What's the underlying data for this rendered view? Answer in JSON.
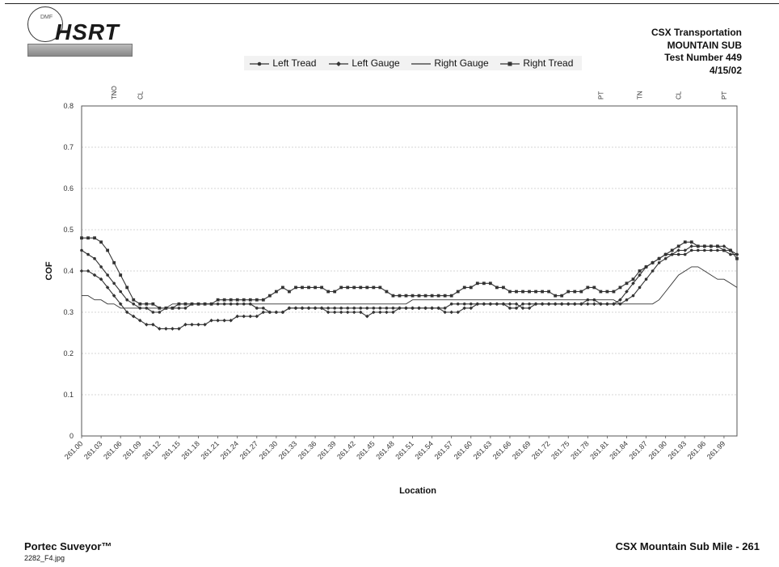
{
  "header": {
    "logo_text": "HSRT",
    "logo_small": "DMF",
    "company_lines": [
      "CSX Transportation",
      "MOUNTAIN SUB",
      "Test Number 449",
      "4/15/02"
    ]
  },
  "legend": [
    "Left Tread",
    "Left Gauge",
    "Right Gauge",
    "Right Tread"
  ],
  "footer": {
    "left": "Portec Suveyor™",
    "filename": "2282_F4.jpg",
    "right": "CSX Mountain Sub Mile - 261"
  },
  "chart_data": {
    "type": "line",
    "title": "",
    "xlabel": "Location",
    "ylabel": "COF",
    "ylim": [
      0,
      0.8
    ],
    "yticks": [
      0,
      0.1,
      0.2,
      0.3,
      0.4,
      0.5,
      0.6,
      0.7,
      0.8
    ],
    "grid": "horizontal",
    "legend_position": "top",
    "x": [
      "261.00",
      "261.01",
      "261.02",
      "261.03",
      "261.04",
      "261.05",
      "261.06",
      "261.07",
      "261.08",
      "261.09",
      "261.10",
      "261.11",
      "261.12",
      "261.13",
      "261.14",
      "261.15",
      "261.16",
      "261.17",
      "261.18",
      "261.19",
      "261.20",
      "261.21",
      "261.22",
      "261.23",
      "261.24",
      "261.25",
      "261.26",
      "261.27",
      "261.28",
      "261.29",
      "261.30",
      "261.31",
      "261.32",
      "261.33",
      "261.34",
      "261.35",
      "261.36",
      "261.37",
      "261.38",
      "261.39",
      "261.40",
      "261.41",
      "261.42",
      "261.43",
      "261.44",
      "261.45",
      "261.46",
      "261.47",
      "261.48",
      "261.49",
      "261.50",
      "261.51",
      "261.52",
      "261.53",
      "261.54",
      "261.55",
      "261.56",
      "261.57",
      "261.58",
      "261.59",
      "261.60",
      "261.61",
      "261.62",
      "261.63",
      "261.64",
      "261.65",
      "261.66",
      "261.67",
      "261.68",
      "261.69",
      "261.70",
      "261.71",
      "261.72",
      "261.73",
      "261.74",
      "261.75",
      "261.76",
      "261.77",
      "261.78",
      "261.79",
      "261.80",
      "261.81",
      "261.82",
      "261.83",
      "261.84",
      "261.85",
      "261.86",
      "261.87",
      "261.88",
      "261.89",
      "261.90",
      "261.91",
      "261.92",
      "261.93",
      "261.94",
      "261.95",
      "261.96",
      "261.97",
      "261.98",
      "261.99",
      "262.00",
      "262.01"
    ],
    "x_tick_labels": [
      "261.00",
      "261.03",
      "261.06",
      "261.09",
      "261.12",
      "261.15",
      "261.18",
      "261.21",
      "261.24",
      "261.27",
      "261.30",
      "261.33",
      "261.36",
      "261.39",
      "261.42",
      "261.45",
      "261.48",
      "261.51",
      "261.54",
      "261.57",
      "261.60",
      "261.63",
      "261.66",
      "261.69",
      "261.72",
      "261.75",
      "261.78",
      "261.81",
      "261.84",
      "261.87",
      "261.90",
      "261.93",
      "261.96",
      "261.99"
    ],
    "track_markers": [
      {
        "label": "TNO",
        "x": "261.05"
      },
      {
        "label": "CL",
        "x": "261.09"
      },
      {
        "label": "PT",
        "x": "261.80"
      },
      {
        "label": "TN",
        "x": "261.86"
      },
      {
        "label": "CL",
        "x": "261.92"
      },
      {
        "label": "PT",
        "x": "261.99"
      }
    ],
    "series": [
      {
        "name": "Left Tread",
        "marker": "circle",
        "values": [
          0.45,
          0.44,
          0.43,
          0.41,
          0.39,
          0.37,
          0.35,
          0.33,
          0.32,
          0.31,
          0.31,
          0.3,
          0.3,
          0.31,
          0.31,
          0.31,
          0.31,
          0.32,
          0.32,
          0.32,
          0.32,
          0.32,
          0.32,
          0.32,
          0.32,
          0.32,
          0.32,
          0.31,
          0.31,
          0.3,
          0.3,
          0.3,
          0.31,
          0.31,
          0.31,
          0.31,
          0.31,
          0.31,
          0.31,
          0.31,
          0.31,
          0.31,
          0.31,
          0.31,
          0.31,
          0.31,
          0.31,
          0.31,
          0.31,
          0.31,
          0.31,
          0.31,
          0.31,
          0.31,
          0.31,
          0.31,
          0.31,
          0.32,
          0.32,
          0.32,
          0.32,
          0.32,
          0.32,
          0.32,
          0.32,
          0.32,
          0.31,
          0.31,
          0.32,
          0.32,
          0.32,
          0.32,
          0.32,
          0.32,
          0.32,
          0.32,
          0.32,
          0.32,
          0.33,
          0.33,
          0.32,
          0.32,
          0.32,
          0.32,
          0.33,
          0.34,
          0.36,
          0.38,
          0.4,
          0.42,
          0.43,
          0.44,
          0.44,
          0.44,
          0.45,
          0.45,
          0.45,
          0.45,
          0.45,
          0.45,
          0.44,
          0.44
        ]
      },
      {
        "name": "Left Gauge",
        "marker": "diamond",
        "values": [
          0.4,
          0.4,
          0.39,
          0.38,
          0.36,
          0.34,
          0.32,
          0.3,
          0.29,
          0.28,
          0.27,
          0.27,
          0.26,
          0.26,
          0.26,
          0.26,
          0.27,
          0.27,
          0.27,
          0.27,
          0.28,
          0.28,
          0.28,
          0.28,
          0.29,
          0.29,
          0.29,
          0.29,
          0.3,
          0.3,
          0.3,
          0.3,
          0.31,
          0.31,
          0.31,
          0.31,
          0.31,
          0.31,
          0.3,
          0.3,
          0.3,
          0.3,
          0.3,
          0.3,
          0.29,
          0.3,
          0.3,
          0.3,
          0.3,
          0.31,
          0.31,
          0.31,
          0.31,
          0.31,
          0.31,
          0.31,
          0.3,
          0.3,
          0.3,
          0.31,
          0.31,
          0.32,
          0.32,
          0.32,
          0.32,
          0.32,
          0.32,
          0.32,
          0.31,
          0.31,
          0.32,
          0.32,
          0.32,
          0.32,
          0.32,
          0.32,
          0.32,
          0.32,
          0.32,
          0.32,
          0.32,
          0.32,
          0.32,
          0.33,
          0.35,
          0.37,
          0.39,
          0.41,
          0.42,
          0.43,
          0.44,
          0.44,
          0.45,
          0.45,
          0.46,
          0.46,
          0.46,
          0.46,
          0.46,
          0.46,
          0.45,
          0.44
        ]
      },
      {
        "name": "Right Gauge",
        "marker": "none",
        "values": [
          0.34,
          0.34,
          0.33,
          0.33,
          0.32,
          0.32,
          0.31,
          0.31,
          0.31,
          0.31,
          0.31,
          0.31,
          0.31,
          0.31,
          0.32,
          0.32,
          0.32,
          0.32,
          0.32,
          0.32,
          0.32,
          0.32,
          0.32,
          0.32,
          0.32,
          0.32,
          0.32,
          0.32,
          0.32,
          0.32,
          0.32,
          0.32,
          0.32,
          0.32,
          0.32,
          0.32,
          0.32,
          0.32,
          0.32,
          0.32,
          0.32,
          0.32,
          0.32,
          0.32,
          0.32,
          0.32,
          0.32,
          0.32,
          0.32,
          0.32,
          0.32,
          0.33,
          0.33,
          0.33,
          0.33,
          0.33,
          0.33,
          0.33,
          0.33,
          0.33,
          0.33,
          0.33,
          0.33,
          0.33,
          0.33,
          0.33,
          0.33,
          0.33,
          0.33,
          0.33,
          0.33,
          0.33,
          0.33,
          0.33,
          0.33,
          0.33,
          0.33,
          0.33,
          0.33,
          0.33,
          0.33,
          0.33,
          0.33,
          0.32,
          0.32,
          0.32,
          0.32,
          0.32,
          0.32,
          0.33,
          0.35,
          0.37,
          0.39,
          0.4,
          0.41,
          0.41,
          0.4,
          0.39,
          0.38,
          0.38,
          0.37,
          0.36
        ]
      },
      {
        "name": "Right Tread",
        "marker": "square",
        "values": [
          0.48,
          0.48,
          0.48,
          0.47,
          0.45,
          0.42,
          0.39,
          0.36,
          0.33,
          0.32,
          0.32,
          0.32,
          0.31,
          0.31,
          0.31,
          0.32,
          0.32,
          0.32,
          0.32,
          0.32,
          0.32,
          0.33,
          0.33,
          0.33,
          0.33,
          0.33,
          0.33,
          0.33,
          0.33,
          0.34,
          0.35,
          0.36,
          0.35,
          0.36,
          0.36,
          0.36,
          0.36,
          0.36,
          0.35,
          0.35,
          0.36,
          0.36,
          0.36,
          0.36,
          0.36,
          0.36,
          0.36,
          0.35,
          0.34,
          0.34,
          0.34,
          0.34,
          0.34,
          0.34,
          0.34,
          0.34,
          0.34,
          0.34,
          0.35,
          0.36,
          0.36,
          0.37,
          0.37,
          0.37,
          0.36,
          0.36,
          0.35,
          0.35,
          0.35,
          0.35,
          0.35,
          0.35,
          0.35,
          0.34,
          0.34,
          0.35,
          0.35,
          0.35,
          0.36,
          0.36,
          0.35,
          0.35,
          0.35,
          0.36,
          0.37,
          0.38,
          0.4,
          0.41,
          0.42,
          0.43,
          0.44,
          0.45,
          0.46,
          0.47,
          0.47,
          0.46,
          0.46,
          0.46,
          0.46,
          0.45,
          0.45,
          0.43
        ]
      }
    ]
  }
}
